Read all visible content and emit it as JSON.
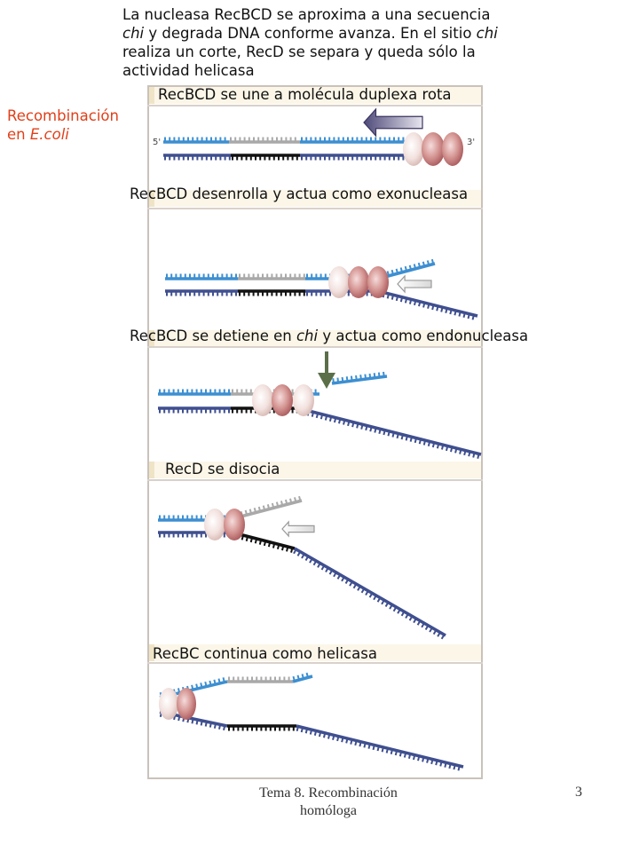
{
  "intro": {
    "line1": "La nucleasa RecBCD se aproxima a una secuencia",
    "line2_italic": "chi",
    "line2_rest": " y degrada DNA conforme avanza. En el sitio ",
    "line2_italic2": "chi",
    "line3": "realiza un corte, RecD se separa y queda sólo la",
    "line4": "actividad helicasa"
  },
  "side_label": {
    "line1": "Recombinación",
    "line2_prefix": "en ",
    "line2_italic": "E.coli"
  },
  "steps": [
    {
      "label": "RecBCD se une a molécula duplexa rota"
    },
    {
      "label": "RecBCD desenrolla y actua como exonucleasa"
    },
    {
      "label_prefix": "RecBCD se detiene en ",
      "label_italic": "chi",
      "label_suffix": " y actua como endonucleasa"
    },
    {
      "label": "RecD se disocia"
    },
    {
      "label": "RecBC continua como helicasa"
    }
  ],
  "strand_labels": {
    "five_prime": "5'",
    "three_prime": "3'"
  },
  "footer": {
    "line1": "Tema 8. Recombinación",
    "line2": "homóloga"
  },
  "page_number": "3",
  "colors": {
    "top_strand": "#3d8fd1",
    "bottom_strand": "#3f4f8f",
    "chi_top": "#a9a9a9",
    "chi_bottom": "#111111",
    "enzyme": "#c9807e",
    "side_label": "#e0401a"
  }
}
